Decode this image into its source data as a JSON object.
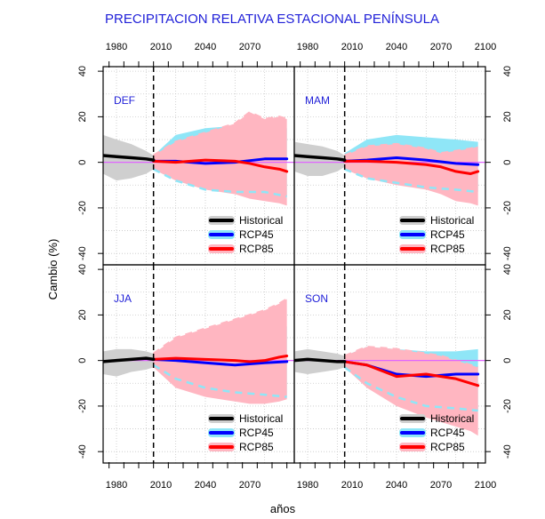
{
  "chart_data": {
    "type": "line",
    "title": "PRECIPITACION RELATIVA ESTACIONAL PENÍNSULA",
    "xlabel": "años",
    "ylabel": "Cambio (%)",
    "xlim": [
      1971,
      2100
    ],
    "ylim": [
      -45,
      42
    ],
    "x_ticks": [
      "1980",
      "2010",
      "2040",
      "2070",
      "2100"
    ],
    "y_ticks": [
      "-40",
      "-20",
      "0",
      "20",
      "40"
    ],
    "reference_year": 2005,
    "legend": [
      "Historical",
      "RCP45",
      "RCP85"
    ],
    "legend_position": "bottom-right",
    "grid": true,
    "colors": {
      "historical": "#000000",
      "historical_band": "#cfcfcf",
      "rcp45": "#0000ff",
      "rcp45_band": "#8fe6f7",
      "rcp85": "#ff0000",
      "rcp85_band": "#ffb6c1",
      "zero_line": "#e066ff",
      "title": "#1f1fd8"
    },
    "panels": [
      {
        "season": "DEF",
        "historical": {
          "x": [
            1971,
            1980,
            1990,
            2000,
            2005
          ],
          "y": [
            3,
            2.5,
            2,
            1.5,
            1
          ],
          "lo": [
            -5,
            -8,
            -7,
            -5,
            -3
          ],
          "hi": [
            12,
            10,
            8,
            5,
            3
          ]
        },
        "rcp45": {
          "x": [
            2005,
            2020,
            2040,
            2060,
            2080,
            2095
          ],
          "y": [
            0.5,
            0.5,
            -0.5,
            0,
            1.5,
            1.5
          ],
          "lo": [
            -3,
            -8,
            -12,
            -13,
            -13,
            -15
          ],
          "hi": [
            3,
            12,
            15,
            16,
            14,
            15
          ]
        },
        "rcp85": {
          "x": [
            2005,
            2020,
            2040,
            2060,
            2070,
            2080,
            2090,
            2095
          ],
          "y": [
            0.5,
            0,
            1,
            0.5,
            -0.5,
            -2,
            -3,
            -4
          ],
          "lo": [
            -3,
            -8,
            -12,
            -14,
            -16,
            -17,
            -18,
            -19
          ],
          "hi": [
            3,
            9,
            13,
            17,
            22,
            19,
            20,
            19
          ]
        }
      },
      {
        "season": "MAM",
        "historical": {
          "x": [
            1971,
            1980,
            1990,
            2000,
            2005
          ],
          "y": [
            3,
            2.5,
            2,
            1.5,
            1
          ],
          "lo": [
            -4,
            -6,
            -6,
            -4,
            -2
          ],
          "hi": [
            9,
            8,
            7,
            5,
            3
          ]
        },
        "rcp45": {
          "x": [
            2005,
            2020,
            2040,
            2060,
            2080,
            2095
          ],
          "y": [
            0.5,
            1,
            2,
            1,
            -0.5,
            -1
          ],
          "lo": [
            -3,
            -7,
            -9,
            -11,
            -12,
            -13
          ],
          "hi": [
            4,
            10,
            12,
            11,
            10,
            9
          ]
        },
        "rcp85": {
          "x": [
            2005,
            2020,
            2040,
            2060,
            2070,
            2080,
            2090,
            2095
          ],
          "y": [
            0.5,
            0.5,
            0,
            -1,
            -2,
            -4,
            -5,
            -4
          ],
          "lo": [
            -3,
            -7,
            -10,
            -12,
            -14,
            -17,
            -18,
            -19
          ],
          "hi": [
            3,
            7,
            8,
            6,
            4,
            5,
            6,
            7
          ]
        }
      },
      {
        "season": "JJA",
        "historical": {
          "x": [
            1971,
            1980,
            1990,
            2000,
            2005
          ],
          "y": [
            -0.5,
            0,
            0.5,
            1,
            0.5
          ],
          "lo": [
            -6,
            -7,
            -5,
            -4,
            -3
          ],
          "hi": [
            4,
            5,
            5,
            4,
            3
          ]
        },
        "rcp45": {
          "x": [
            2005,
            2020,
            2040,
            2060,
            2080,
            2095
          ],
          "y": [
            0.5,
            0,
            -1,
            -2,
            -1,
            -0.5
          ],
          "lo": [
            -2,
            -8,
            -12,
            -14,
            -15,
            -16
          ],
          "hi": [
            2,
            8,
            12,
            13,
            14,
            15
          ]
        },
        "rcp85": {
          "x": [
            2005,
            2020,
            2040,
            2060,
            2070,
            2080,
            2090,
            2095
          ],
          "y": [
            0.5,
            1,
            0.5,
            0,
            -0.5,
            0,
            1.5,
            2
          ],
          "lo": [
            -3,
            -12,
            -16,
            -18,
            -19,
            -19,
            -18,
            -17
          ],
          "hi": [
            3,
            10,
            14,
            18,
            20,
            22,
            25,
            27
          ]
        }
      },
      {
        "season": "SON",
        "historical": {
          "x": [
            1971,
            1980,
            1990,
            2000,
            2005
          ],
          "y": [
            0,
            0.5,
            0,
            -0.5,
            -0.5
          ],
          "lo": [
            -5,
            -6,
            -5,
            -4,
            -3
          ],
          "hi": [
            4,
            5,
            4,
            3,
            2
          ]
        },
        "rcp45": {
          "x": [
            2005,
            2020,
            2040,
            2060,
            2080,
            2095
          ],
          "y": [
            -0.5,
            -2,
            -6,
            -7,
            -6,
            -6
          ],
          "lo": [
            -3,
            -10,
            -16,
            -20,
            -21,
            -22
          ],
          "hi": [
            2,
            6,
            5,
            4,
            4,
            5
          ]
        },
        "rcp85": {
          "x": [
            2005,
            2020,
            2040,
            2060,
            2070,
            2080,
            2090,
            2095
          ],
          "y": [
            -0.5,
            -2,
            -7,
            -6,
            -7,
            -8,
            -10,
            -11
          ],
          "lo": [
            -3,
            -12,
            -20,
            -25,
            -27,
            -29,
            -31,
            -33
          ],
          "hi": [
            2,
            6,
            5,
            3,
            2,
            0,
            -2,
            -3
          ]
        }
      }
    ]
  }
}
